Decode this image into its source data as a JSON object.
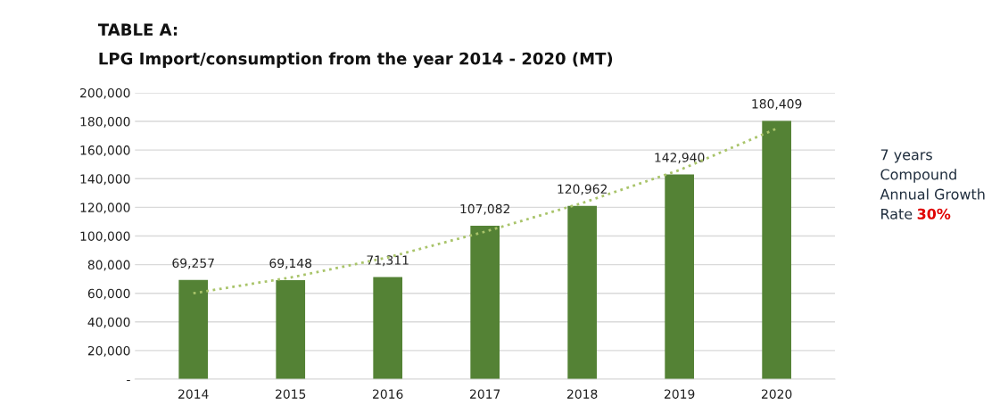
{
  "chart_data": {
    "type": "bar",
    "title": "TABLE A:",
    "subtitle": "LPG Import/consumption from the year 2014 - 2020 (MT)",
    "categories": [
      "2014",
      "2015",
      "2016",
      "2017",
      "2018",
      "2019",
      "2020"
    ],
    "series": [
      {
        "color": "#548235",
        "values": [
          69257,
          69148,
          71311,
          107082,
          120962,
          142940,
          180409
        ],
        "value_labels": [
          "69,257",
          "69,148",
          "71,311",
          "107,082",
          "120,962",
          "142,940",
          "180,409"
        ]
      },
      {
        "type": "line",
        "color": "#a9c46a",
        "line_style": "dotted",
        "values": [
          60000,
          71000,
          85000,
          103000,
          123000,
          146000,
          175000
        ]
      }
    ],
    "ylim": [
      0,
      200000
    ],
    "yticks": [
      {
        "value": 0,
        "label": "-"
      },
      {
        "value": 20000,
        "label": "20,000"
      },
      {
        "value": 40000,
        "label": "40,000"
      },
      {
        "value": 60000,
        "label": "60,000"
      },
      {
        "value": 80000,
        "label": "80,000"
      },
      {
        "value": 100000,
        "label": "100,000"
      },
      {
        "value": 120000,
        "label": "120,000"
      },
      {
        "value": 140000,
        "label": "140,000"
      },
      {
        "value": 160000,
        "label": "160,000"
      },
      {
        "value": 180000,
        "label": "180,000"
      },
      {
        "value": 200000,
        "label": "200,000"
      }
    ],
    "grid": "y",
    "annotations": [
      "7 years\nCompound\nAnnual Growth\nRate",
      "30%"
    ]
  }
}
